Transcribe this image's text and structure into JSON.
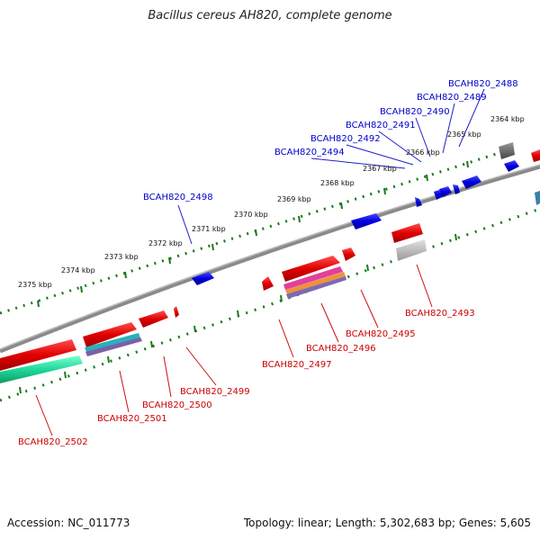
{
  "title": "Bacillus cereus AH820, complete genome",
  "footer": {
    "accession": "Accession: NC_011773",
    "topology": "Topology: linear; Length: 5,302,683 bp; Genes: 5,605"
  },
  "colors": {
    "upper_gene_label": "#0000cc",
    "lower_gene_label": "#cc0000",
    "backbone": "#888888",
    "ticks": "#1a7a1a"
  },
  "scale_labels": [
    "2364 kbp",
    "2365 kbp",
    "2366 kbp",
    "2367 kbp",
    "2368 kbp",
    "2369 kbp",
    "2370 kbp",
    "2371 kbp",
    "2372 kbp",
    "2373 kbp",
    "2374 kbp",
    "2375 kbp"
  ],
  "upper_gene_labels": [
    "BCAH820_2488",
    "BCAH820_2489",
    "BCAH820_2490",
    "BCAH820_2491",
    "BCAH820_2492",
    "BCAH820_2494",
    "BCAH820_2498"
  ],
  "lower_gene_labels": [
    "BCAH820_2493",
    "BCAH820_2495",
    "BCAH820_2496",
    "BCAH820_2497",
    "BCAH820_2499",
    "BCAH820_2500",
    "BCAH820_2501",
    "BCAH820_2502"
  ]
}
